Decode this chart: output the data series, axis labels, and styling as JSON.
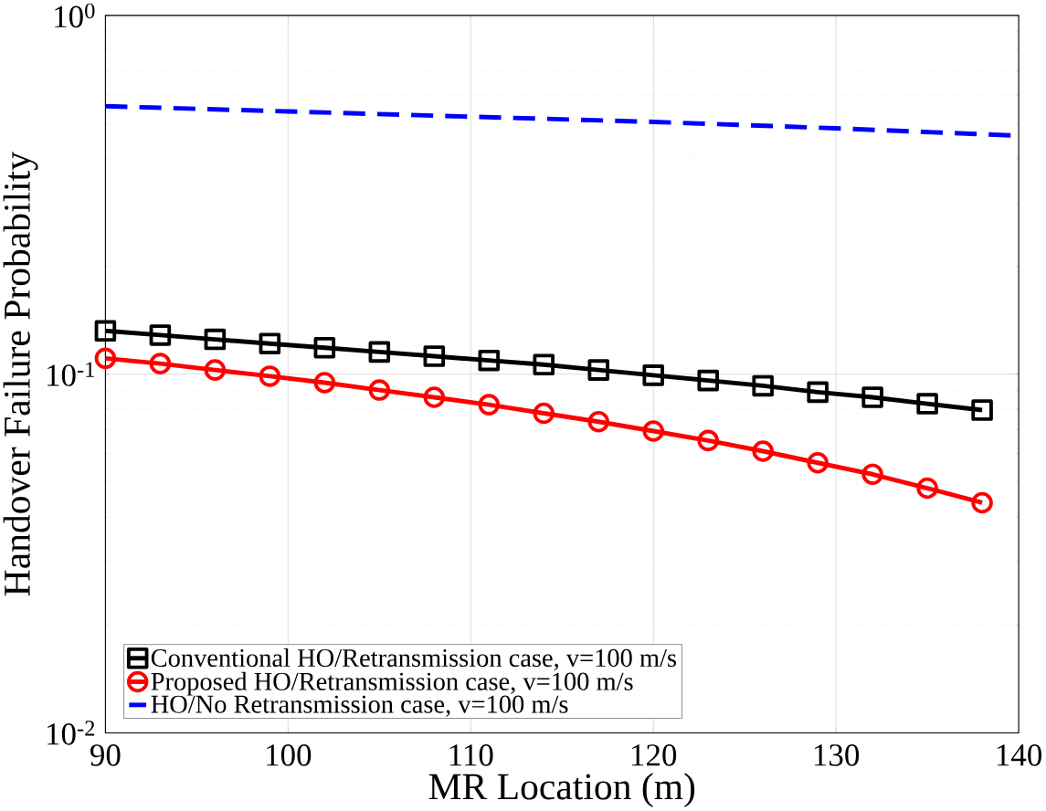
{
  "chart_data": {
    "type": "line",
    "xlabel": "MR Location (m)",
    "ylabel": "Handover Failure Probability",
    "log": "y",
    "grid": true,
    "legend": "bottom left",
    "xlim": [
      90,
      140
    ],
    "xticks": [
      90,
      100,
      110,
      120,
      130,
      140
    ],
    "ylim": [
      0.01,
      1
    ],
    "yticks": [
      {
        "value": 0.01,
        "label": "10$^{-2}$"
      },
      {
        "value": 0.1,
        "label": "10$^{-1}$"
      },
      {
        "value": 1,
        "label": "10$^{0}$"
      }
    ],
    "series": [
      {
        "name": "Conventional HO/Retransmission case, v=100 m/s",
        "color": "#000000",
        "marker": "square",
        "line_style": "solid",
        "x": [
          90,
          93,
          96,
          99,
          102,
          105,
          108,
          111,
          114,
          117,
          120,
          123,
          126,
          129,
          132,
          135,
          138
        ],
        "values": [
          0.132,
          0.1285,
          0.125,
          0.1217,
          0.1185,
          0.1153,
          0.1122,
          0.1092,
          0.1063,
          0.1027,
          0.0993,
          0.096,
          0.0928,
          0.0891,
          0.0862,
          0.0827,
          0.0794
        ]
      },
      {
        "name": "Proposed HO/Retransmission case, v=100 m/s",
        "color": "#ff0000",
        "marker": "circle",
        "line_style": "solid",
        "x": [
          90,
          93,
          96,
          99,
          102,
          105,
          108,
          111,
          114,
          117,
          120,
          123,
          126,
          129,
          132,
          135,
          138
        ],
        "values": [
          0.1107,
          0.107,
          0.1027,
          0.0987,
          0.0947,
          0.0903,
          0.0862,
          0.0822,
          0.0778,
          0.0737,
          0.0694,
          0.0653,
          0.061,
          0.0566,
          0.0526,
          0.0481,
          0.0438
        ]
      },
      {
        "name": "HO/No Retransmission case, v=100 m/s",
        "color": "#0000ff",
        "marker": "none",
        "line_style": "dashed",
        "x": [
          90,
          100,
          110,
          120,
          130,
          140
        ],
        "values": [
          0.5585,
          0.54,
          0.522,
          0.505,
          0.4845,
          0.462
        ]
      }
    ]
  }
}
